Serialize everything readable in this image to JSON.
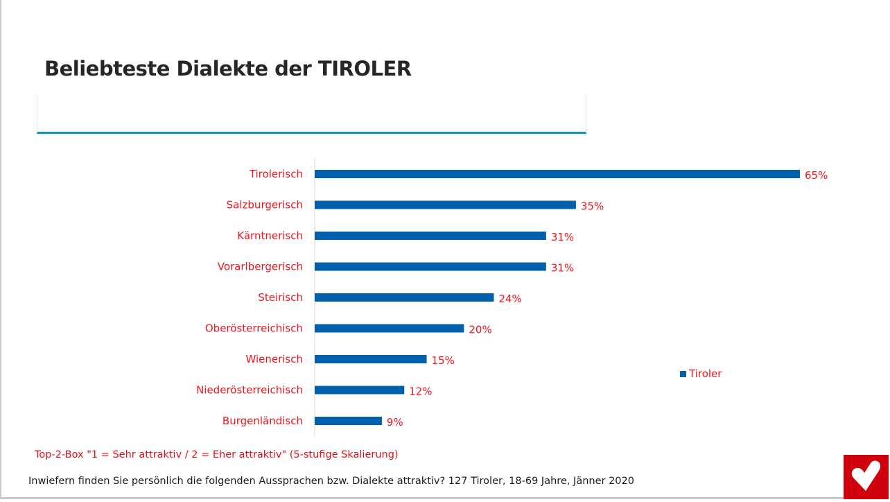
{
  "title": "Beliebteste Dialekte der TIROLER",
  "chart_data": {
    "type": "bar",
    "orientation": "horizontal",
    "categories": [
      "Tirolerisch",
      "Salzburgerisch",
      "Kärntnerisch",
      "Vorarlbergerisch",
      "Steirisch",
      "Oberösterreichisch",
      "Wienerisch",
      "Niederösterreichisch",
      "Burgenländisch"
    ],
    "series": [
      {
        "name": "Tiroler",
        "values": [
          65,
          35,
          31,
          31,
          24,
          20,
          15,
          12,
          9
        ],
        "color": "#0060ac"
      }
    ],
    "data_labels": [
      "65%",
      "35%",
      "31%",
      "31%",
      "24%",
      "20%",
      "15%",
      "12%",
      "9%"
    ],
    "xlim": [
      0,
      65
    ],
    "legend": "right"
  },
  "note": "Top-2-Box \"1 = Sehr attraktiv / 2 = Eher attraktiv\" (5-stufige Skalierung)",
  "question": "Inwiefern finden Sie persönlich die folgenden Aussprachen bzw. Dialekte attraktiv? 127 Tiroler, 18-69 Jahre, Jänner 2020"
}
